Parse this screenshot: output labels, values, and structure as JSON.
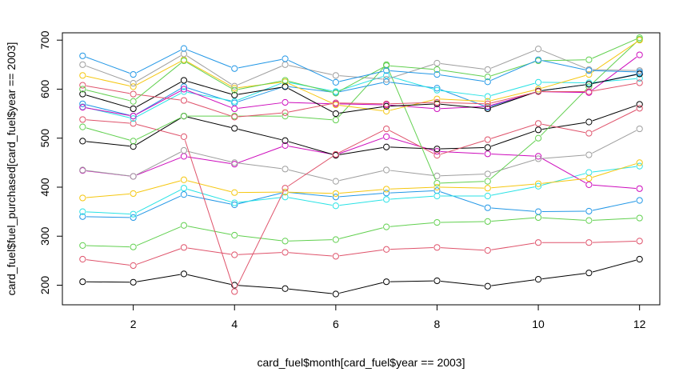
{
  "chart_data": {
    "type": "line",
    "xlabel": "card_fuel$month[card_fuel$year == 2003]",
    "ylabel": "card_fuel$fuel_purchased[card_fuel$year == 2003]",
    "xlim": [
      0.6,
      12.4
    ],
    "ylim": [
      160,
      715
    ],
    "xticks": [
      2,
      4,
      6,
      8,
      10,
      12
    ],
    "yticks": [
      200,
      300,
      400,
      500,
      600,
      700
    ],
    "grid": false,
    "marker": "open-circle",
    "x": [
      1,
      2,
      3,
      4,
      5,
      6,
      7,
      8,
      9,
      10,
      11,
      12
    ],
    "series": [
      {
        "color": "#000000",
        "values": [
          207,
          206,
          223,
          200,
          193,
          182,
          207,
          209,
          198,
          212,
          225,
          253
        ]
      },
      {
        "color": "#DF536B",
        "values": [
          253,
          240,
          277,
          262,
          267,
          259,
          273,
          277,
          271,
          287,
          287,
          290
        ]
      },
      {
        "color": "#61D04F",
        "values": [
          281,
          278,
          322,
          302,
          290,
          293,
          319,
          328,
          330,
          338,
          332,
          337
        ]
      },
      {
        "color": "#2297E6",
        "values": [
          340,
          338,
          385,
          364,
          390,
          380,
          388,
          393,
          358,
          350,
          351,
          373
        ]
      },
      {
        "color": "#28E2E5",
        "values": [
          350,
          345,
          398,
          368,
          380,
          362,
          375,
          382,
          382,
          402,
          430,
          443
        ]
      },
      {
        "color": "#CD0BBC",
        "values": [
          434,
          422,
          463,
          447,
          485,
          466,
          503,
          473,
          468,
          463,
          405,
          397
        ]
      },
      {
        "color": "#F5C710",
        "values": [
          378,
          387,
          415,
          389,
          390,
          387,
          396,
          400,
          398,
          407,
          418,
          450
        ]
      },
      {
        "color": "#9E9E9E",
        "values": [
          435,
          422,
          475,
          450,
          437,
          412,
          435,
          423,
          427,
          458,
          466,
          519
        ]
      },
      {
        "color": "#000000",
        "values": [
          494,
          483,
          545,
          520,
          495,
          465,
          482,
          478,
          481,
          517,
          533,
          569
        ]
      },
      {
        "color": "#DF536B",
        "values": [
          538,
          530,
          503,
          187,
          398,
          467,
          519,
          465,
          497,
          530,
          510,
          561
        ]
      },
      {
        "color": "#61D04F",
        "values": [
          523,
          494,
          545,
          545,
          545,
          537,
          650,
          408,
          412,
          500,
          605,
          702
        ]
      },
      {
        "color": "#2297E6",
        "values": [
          570,
          545,
          605,
          572,
          606,
          593,
          615,
          602,
          563,
          596,
          610,
          632
        ]
      },
      {
        "color": "#28E2E5",
        "values": [
          564,
          540,
          595,
          575,
          615,
          595,
          628,
          598,
          585,
          614,
          613,
          622
        ]
      },
      {
        "color": "#CD0BBC",
        "values": [
          563,
          545,
          600,
          560,
          573,
          570,
          568,
          560,
          565,
          595,
          593,
          670
        ]
      },
      {
        "color": "#F5C710",
        "values": [
          628,
          605,
          660,
          602,
          615,
          568,
          555,
          580,
          575,
          600,
          630,
          700
        ]
      },
      {
        "color": "#9E9E9E",
        "values": [
          650,
          612,
          672,
          606,
          650,
          628,
          620,
          653,
          640,
          682,
          640,
          638
        ]
      },
      {
        "color": "#000000",
        "values": [
          590,
          560,
          618,
          588,
          605,
          550,
          565,
          570,
          560,
          596,
          610,
          631
        ]
      },
      {
        "color": "#DF536B",
        "values": [
          608,
          590,
          577,
          543,
          552,
          572,
          570,
          573,
          570,
          595,
          595,
          613
        ]
      },
      {
        "color": "#61D04F",
        "values": [
          600,
          575,
          658,
          598,
          618,
          592,
          648,
          640,
          625,
          658,
          660,
          705
        ]
      },
      {
        "color": "#2297E6",
        "values": [
          668,
          630,
          683,
          642,
          662,
          614,
          638,
          630,
          615,
          660,
          638,
          635
        ]
      }
    ]
  }
}
